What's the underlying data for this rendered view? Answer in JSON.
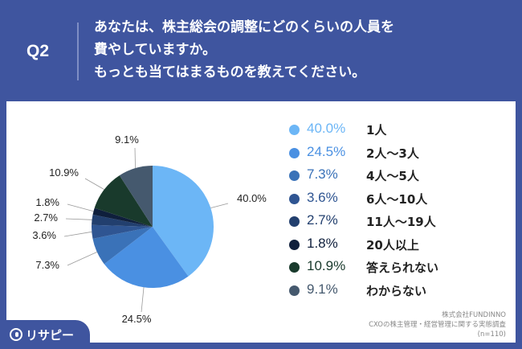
{
  "question": {
    "label": "Q2",
    "lines": [
      "あなたは、株主総会の調整にどのくらいの人員を",
      "費やしていますか。",
      "もっとも当てはまるものを教えてください。"
    ]
  },
  "chart_data": {
    "type": "pie",
    "slices": [
      {
        "label": "1人",
        "value": 40.0,
        "pct_text": "40.0%",
        "color": "#6cb6f6"
      },
      {
        "label": "2人〜3人",
        "value": 24.5,
        "pct_text": "24.5%",
        "color": "#4a90e2"
      },
      {
        "label": "4人〜5人",
        "value": 7.3,
        "pct_text": "7.3%",
        "color": "#3a72b8"
      },
      {
        "label": "6人〜10人",
        "value": 3.6,
        "pct_text": "3.6%",
        "color": "#2f5592"
      },
      {
        "label": "11人〜19人",
        "value": 2.7,
        "pct_text": "2.7%",
        "color": "#223f6e"
      },
      {
        "label": "20人以上",
        "value": 1.8,
        "pct_text": "1.8%",
        "color": "#0f1f3c"
      },
      {
        "label": "答えられない",
        "value": 10.9,
        "pct_text": "10.9%",
        "color": "#193a2c"
      },
      {
        "label": "わからない",
        "value": 9.1,
        "pct_text": "9.1%",
        "color": "#45596e"
      }
    ],
    "legend_position": "right"
  },
  "source": {
    "company": "株式会社FUNDINNO",
    "survey": "CXOの株主管理・経営管理に関する実態調査",
    "sample": "(n=110)"
  },
  "brand": {
    "name": "リサピー"
  }
}
